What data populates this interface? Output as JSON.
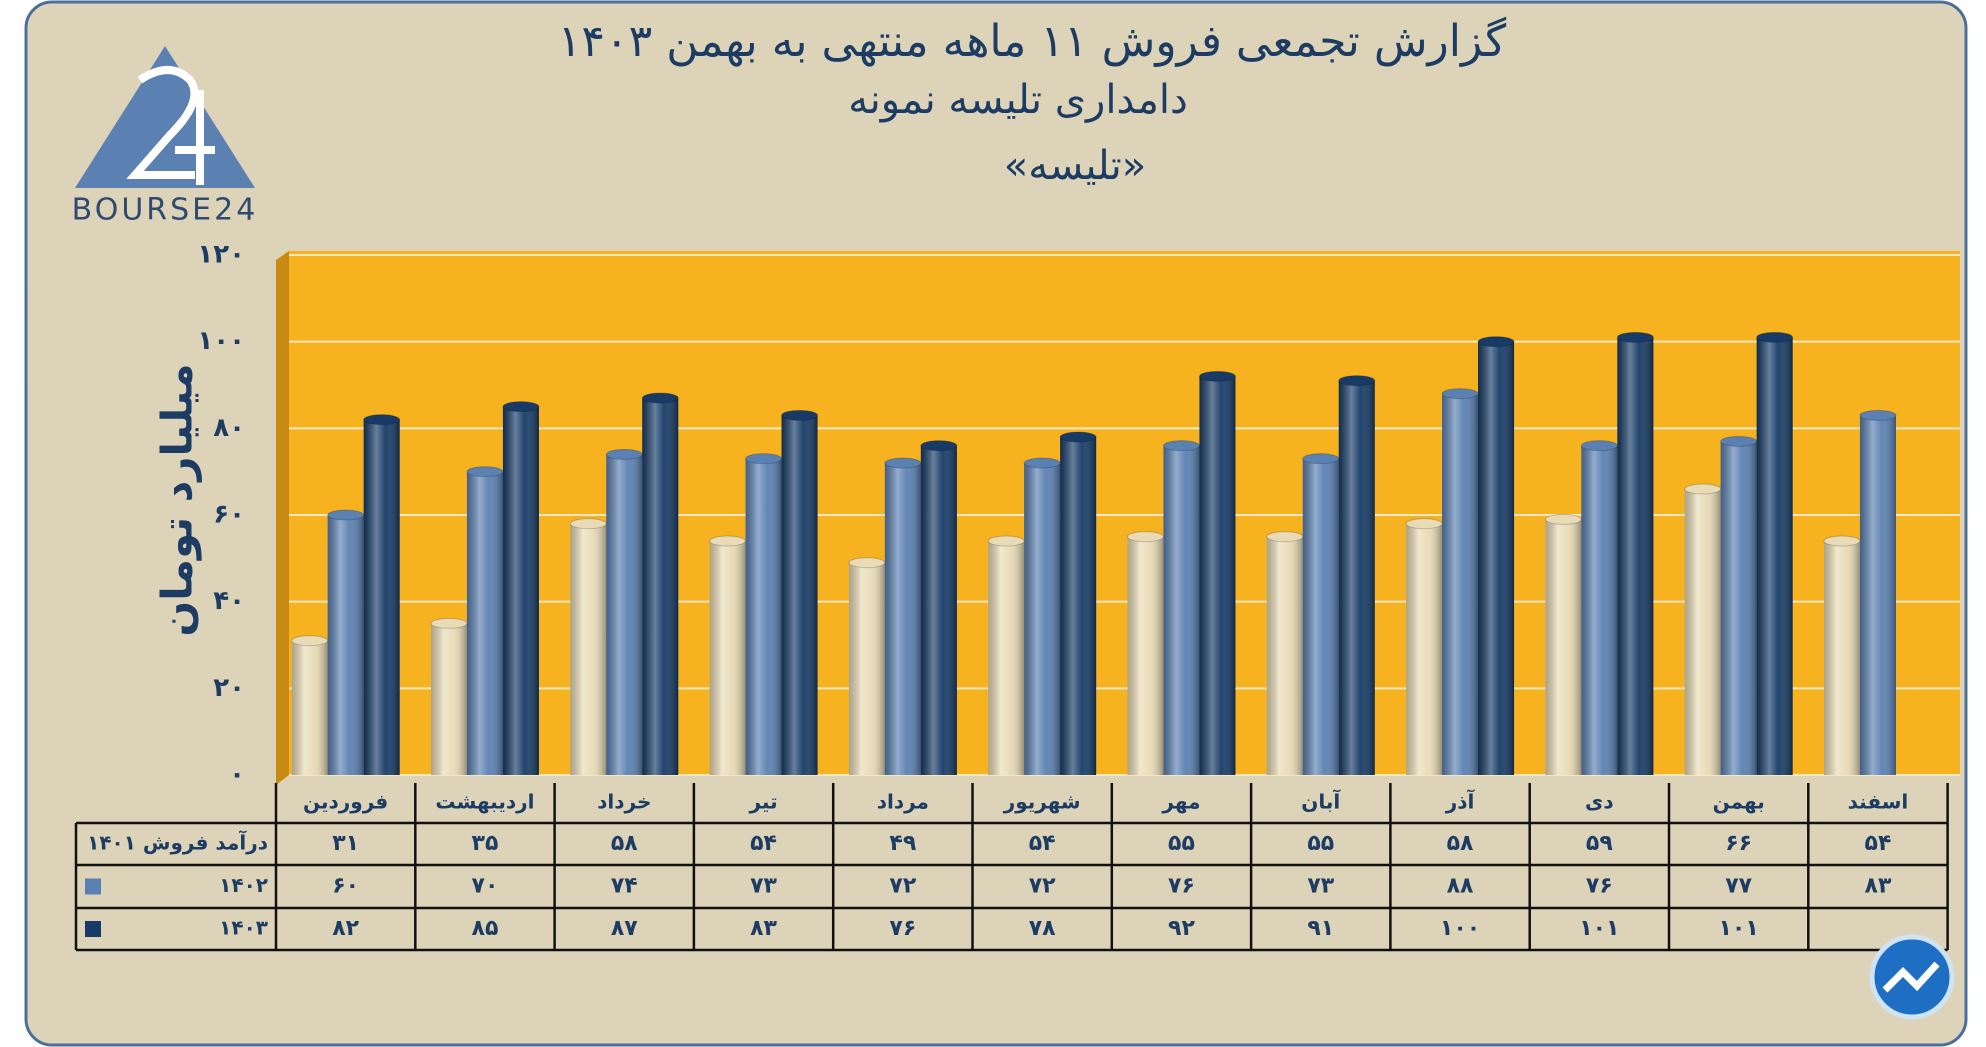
{
  "brand": "BOURSE24",
  "chart_data": {
    "type": "bar",
    "title": "گزارش تجمعی فروش ۱۱ ماهه منتهی به بهمن ۱۴۰۳",
    "subtitle": "دامداری تلیسه نمونه",
    "subtitle2": "«تلیسه»",
    "y_label": "میلیارد تومان",
    "categories": [
      "فروردین",
      "اردیبهشت",
      "خرداد",
      "تیر",
      "مرداد",
      "شهریور",
      "مهر",
      "آبان",
      "آذر",
      "دی",
      "بهمن",
      "اسفند"
    ],
    "series": [
      {
        "name": "درآمد فروش ۱۴۰۱",
        "color": "#e8dbb6",
        "values": [
          31,
          35,
          58,
          54,
          49,
          54,
          55,
          55,
          58,
          59,
          66,
          54
        ],
        "value_labels": [
          "۳۱",
          "۳۵",
          "۵۸",
          "۵۴",
          "۴۹",
          "۵۴",
          "۵۵",
          "۵۵",
          "۵۸",
          "۵۹",
          "۶۶",
          "۵۴"
        ]
      },
      {
        "name": "۱۴۰۲",
        "color": "#5b80b2",
        "values": [
          60,
          70,
          74,
          73,
          72,
          72,
          76,
          73,
          88,
          76,
          77,
          83
        ],
        "value_labels": [
          "۶۰",
          "۷۰",
          "۷۴",
          "۷۳",
          "۷۲",
          "۷۲",
          "۷۶",
          "۷۳",
          "۸۸",
          "۷۶",
          "۷۷",
          "۸۳"
        ]
      },
      {
        "name": "۱۴۰۳",
        "color": "#173b66",
        "values": [
          82,
          85,
          87,
          83,
          76,
          78,
          92,
          91,
          100,
          101,
          101,
          null
        ],
        "value_labels": [
          "۸۲",
          "۸۵",
          "۸۷",
          "۸۳",
          "۷۶",
          "۷۸",
          "۹۲",
          "۹۱",
          "۱۰۰",
          "۱۰۱",
          "۱۰۱",
          null
        ]
      }
    ],
    "ylim": [
      0,
      120
    ],
    "yticks": [
      {
        "value": 0,
        "label": "۰"
      },
      {
        "value": 20,
        "label": "۲۰"
      },
      {
        "value": 40,
        "label": "۴۰"
      },
      {
        "value": 60,
        "label": "۶۰"
      },
      {
        "value": 80,
        "label": "۸۰"
      },
      {
        "value": 100,
        "label": "۱۰۰"
      },
      {
        "value": 120,
        "label": "۱۲۰"
      }
    ],
    "grid": true
  }
}
